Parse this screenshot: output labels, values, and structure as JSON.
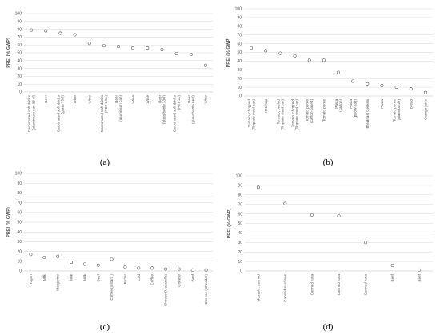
{
  "chart_data": [
    {
      "type": "scatter",
      "panel_label": "(a)",
      "ylabel": "PREI (% GWP)",
      "ylim": [
        0,
        100
      ],
      "yticks": [
        0,
        10,
        20,
        30,
        40,
        50,
        60,
        70,
        80,
        90,
        100
      ],
      "grid": true,
      "categories": [
        [
          "Carbonated soft drinks",
          "(aluminium can 33 cl)"
        ],
        [
          "Beer"
        ],
        [
          "Carbonated soft drinks",
          "(glass 75cl)"
        ],
        [
          "Wine"
        ],
        [
          "Wine"
        ],
        [
          "Carbonated soft drinks",
          "(PET 0.5L)"
        ],
        [
          "Beer",
          "(aluminium can)"
        ],
        [
          "Wine"
        ],
        [
          "Wine"
        ],
        [
          "Beer",
          "(glass bottle 33cl)"
        ],
        [
          "Carbonated soft drinks",
          "(PET 2L)"
        ],
        [
          "Beer",
          "(glass bottle 66cl)"
        ],
        [
          "Wine"
        ]
      ],
      "values": [
        79,
        78,
        75,
        73,
        62,
        59,
        58,
        56,
        56,
        54,
        49,
        48,
        34
      ]
    },
    {
      "type": "scatter",
      "panel_label": "(b)",
      "ylabel": "PREI (% GWP)",
      "ylim": [
        0,
        100
      ],
      "yticks": [
        0,
        10,
        20,
        30,
        40,
        50,
        60,
        70,
        80,
        90,
        100
      ],
      "grid": true,
      "categories": [
        [
          "Tomato, chopped",
          "(Tinplate steel can)"
        ],
        [
          "Ketchup"
        ],
        [
          "Tomato, peeled",
          "(Tinplate steel can)"
        ],
        [
          "Tomato, chopped",
          "(Tinplate steel can)"
        ],
        [
          "Tomato puree",
          "(carton-based)"
        ],
        [
          "Tomato puree"
        ],
        [
          "Pasta",
          "(carton)"
        ],
        [
          "Pasta",
          "(pillow-bag)"
        ],
        [
          "Breakfast Cereals"
        ],
        [
          "Pasta"
        ],
        [
          "Tomato puree",
          "(glass bottle)"
        ],
        [
          "Bread"
        ],
        [
          "Orange juice"
        ]
      ],
      "values": [
        55,
        52,
        49,
        46,
        41,
        41,
        27,
        17,
        14,
        12,
        10,
        8,
        4
      ]
    },
    {
      "type": "scatter",
      "panel_label": "(c)",
      "ylabel": "PREI (% GWP)",
      "ylim": [
        0,
        100
      ],
      "yticks": [
        0,
        10,
        20,
        30,
        40,
        50,
        60,
        70,
        80,
        90,
        100
      ],
      "grid": true,
      "categories": [
        [
          "Yogurt"
        ],
        [
          "Milk"
        ],
        [
          "Margarine"
        ],
        [
          "Milk"
        ],
        [
          "Milk"
        ],
        [
          "Beef"
        ],
        [
          "Coffee (instant )"
        ],
        [
          "Butter"
        ],
        [
          "Cod"
        ],
        [
          "Coffee"
        ],
        [
          "Cheese (Mozarella)"
        ],
        [
          "Cheese"
        ],
        [
          "Beef"
        ],
        [
          "Cheese (Cheddar)"
        ]
      ],
      "values": [
        17,
        14,
        15,
        9,
        7,
        6,
        12,
        4,
        3,
        3,
        2,
        2,
        1,
        1
      ]
    },
    {
      "type": "scatter",
      "panel_label": "(d)",
      "ylabel": "PREI (% GWP)",
      "ylim": [
        0,
        100
      ],
      "yticks": [
        0,
        10,
        20,
        30,
        40,
        50,
        60,
        70,
        80,
        90,
        100
      ],
      "grid": true,
      "categories": [
        [
          "Mussels, canned"
        ],
        [
          "Canned sardines"
        ],
        [
          "Canned tuna"
        ],
        [
          "Canned tuna"
        ],
        [
          "Canned tuna"
        ],
        [
          "Beef"
        ],
        [
          "Beef"
        ]
      ],
      "values": [
        88,
        71,
        59,
        58,
        30,
        6,
        1
      ]
    }
  ]
}
